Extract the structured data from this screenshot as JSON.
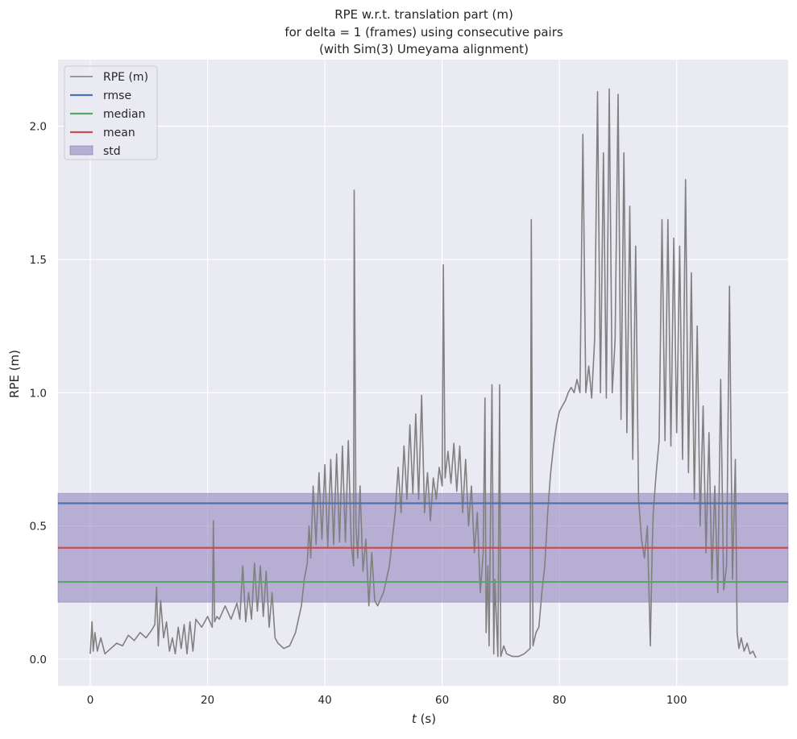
{
  "chart_data": {
    "type": "line",
    "title": {
      "line1": "RPE w.r.t. translation part (m)",
      "line2": "for delta = 1 (frames) using consecutive pairs",
      "line3": "(with Sim(3) Umeyama alignment)"
    },
    "xlabel": {
      "var": "t",
      "unit": " (s)"
    },
    "ylabel": "RPE (m)",
    "xlim": [
      -5.5,
      119
    ],
    "ylim": [
      -0.1,
      2.25
    ],
    "xticks": [
      0,
      20,
      40,
      60,
      80,
      100
    ],
    "xtick_labels": [
      "0",
      "20",
      "40",
      "60",
      "80",
      "100"
    ],
    "yticks": [
      0.0,
      0.5,
      1.0,
      1.5,
      2.0
    ],
    "ytick_labels": [
      "0.0",
      "0.5",
      "1.0",
      "1.5",
      "2.0"
    ],
    "grid": true,
    "legend_position": "top-left",
    "background": "#eaeaf2",
    "series": [
      {
        "name": "RPE (m)",
        "color": "#808080",
        "x": [
          0,
          0.3,
          0.5,
          0.8,
          1.2,
          1.8,
          2.5,
          3.5,
          4.5,
          5.5,
          6.5,
          7.5,
          8.5,
          9.5,
          10.5,
          11,
          11.3,
          11.6,
          12,
          12.5,
          13,
          13.5,
          14,
          14.5,
          15,
          15.5,
          16,
          16.5,
          17,
          17.5,
          18,
          19,
          20,
          20.8,
          21,
          21.2,
          21.6,
          22,
          23,
          24,
          25,
          25.5,
          26,
          26.5,
          27,
          27.5,
          28,
          28.5,
          29,
          29.5,
          30,
          30.5,
          31,
          31.5,
          32,
          33,
          34,
          35,
          36,
          36.5,
          37,
          37.3,
          37.6,
          38,
          38.5,
          39,
          39.5,
          40,
          40.5,
          41,
          41.5,
          42,
          42.5,
          43,
          43.5,
          44,
          44.5,
          44.9,
          45,
          45.3,
          45.6,
          46,
          46.5,
          47,
          47.5,
          48,
          48.5,
          49,
          50,
          51,
          52,
          52.5,
          53,
          53.5,
          54,
          54.5,
          55,
          55.5,
          56,
          56.5,
          57,
          57.5,
          58,
          58.5,
          59,
          59.5,
          60,
          60.2,
          60.5,
          61,
          61.5,
          62,
          62.5,
          63,
          63.5,
          64,
          64.5,
          65,
          65.5,
          66,
          66.5,
          67,
          67.3,
          67.5,
          67.8,
          68,
          68.5,
          68.8,
          69,
          69.5,
          69.8,
          70,
          70.5,
          71,
          72,
          73,
          74,
          75,
          75.2,
          75.5,
          76,
          76.5,
          77,
          77.5,
          78,
          78.5,
          79,
          79.5,
          80,
          80.5,
          81,
          81.5,
          82,
          82.5,
          83,
          83.5,
          84,
          84.5,
          85,
          85.5,
          86,
          86.5,
          87,
          87.5,
          88,
          88.5,
          89,
          89.5,
          90,
          90.5,
          91,
          91.5,
          92,
          92.5,
          93,
          93.5,
          94,
          94.5,
          95,
          95.5,
          95.8,
          96,
          96.5,
          97,
          97.5,
          98,
          98.5,
          99,
          99.5,
          100,
          100.5,
          101,
          101.5,
          102,
          102.5,
          103,
          103.5,
          104,
          104.5,
          105,
          105.5,
          106,
          106.5,
          107,
          107.5,
          108,
          108.5,
          109,
          109.5,
          110,
          110.3,
          110.6,
          111,
          111.5,
          112,
          112.5,
          113,
          113.5
        ],
        "y": [
          0.02,
          0.14,
          0.03,
          0.1,
          0.03,
          0.08,
          0.02,
          0.04,
          0.06,
          0.05,
          0.09,
          0.07,
          0.1,
          0.08,
          0.11,
          0.13,
          0.27,
          0.05,
          0.22,
          0.08,
          0.14,
          0.03,
          0.08,
          0.02,
          0.12,
          0.04,
          0.13,
          0.02,
          0.14,
          0.03,
          0.15,
          0.12,
          0.16,
          0.12,
          0.52,
          0.14,
          0.16,
          0.15,
          0.2,
          0.15,
          0.21,
          0.15,
          0.35,
          0.14,
          0.25,
          0.15,
          0.36,
          0.18,
          0.35,
          0.16,
          0.33,
          0.12,
          0.25,
          0.08,
          0.06,
          0.04,
          0.05,
          0.1,
          0.2,
          0.3,
          0.36,
          0.5,
          0.38,
          0.65,
          0.43,
          0.7,
          0.45,
          0.73,
          0.42,
          0.75,
          0.43,
          0.77,
          0.44,
          0.8,
          0.44,
          0.82,
          0.43,
          0.35,
          1.76,
          0.5,
          0.38,
          0.65,
          0.33,
          0.45,
          0.2,
          0.4,
          0.22,
          0.2,
          0.25,
          0.35,
          0.55,
          0.72,
          0.55,
          0.8,
          0.6,
          0.88,
          0.62,
          0.92,
          0.6,
          0.99,
          0.55,
          0.7,
          0.52,
          0.68,
          0.6,
          0.72,
          0.65,
          1.48,
          0.68,
          0.78,
          0.66,
          0.81,
          0.63,
          0.8,
          0.55,
          0.75,
          0.5,
          0.65,
          0.4,
          0.55,
          0.25,
          0.4,
          0.98,
          0.1,
          0.35,
          0.05,
          1.03,
          0.02,
          0.3,
          0.01,
          1.03,
          0.01,
          0.05,
          0.02,
          0.01,
          0.01,
          0.02,
          0.04,
          1.65,
          0.05,
          0.1,
          0.12,
          0.25,
          0.35,
          0.55,
          0.7,
          0.8,
          0.88,
          0.93,
          0.95,
          0.97,
          1.0,
          1.02,
          1.0,
          1.05,
          1.0,
          1.97,
          1.0,
          1.1,
          0.98,
          1.2,
          2.13,
          1.0,
          1.9,
          0.98,
          2.14,
          1.0,
          1.2,
          2.12,
          0.9,
          1.9,
          0.85,
          1.7,
          0.75,
          1.55,
          0.6,
          0.45,
          0.38,
          0.5,
          0.05,
          0.4,
          0.55,
          0.7,
          0.82,
          1.65,
          0.82,
          1.65,
          0.8,
          1.58,
          0.85,
          1.55,
          0.75,
          1.8,
          0.7,
          1.45,
          0.6,
          1.25,
          0.5,
          0.95,
          0.4,
          0.85,
          0.3,
          0.65,
          0.25,
          1.05,
          0.26,
          0.35,
          1.4,
          0.3,
          0.75,
          0.1,
          0.04,
          0.08,
          0.03,
          0.06,
          0.02,
          0.03,
          0.005
        ]
      }
    ],
    "stats": [
      {
        "name": "rmse",
        "value": 0.585,
        "color": "#4c72b0"
      },
      {
        "name": "median",
        "value": 0.29,
        "color": "#55a868"
      },
      {
        "name": "mean",
        "value": 0.418,
        "color": "#c44e52"
      }
    ],
    "std_band": {
      "name": "std",
      "range": [
        0.214,
        0.622
      ],
      "color": "#8172b3"
    },
    "legend_entries": [
      "RPE (m)",
      "rmse",
      "median",
      "mean",
      "std"
    ]
  }
}
